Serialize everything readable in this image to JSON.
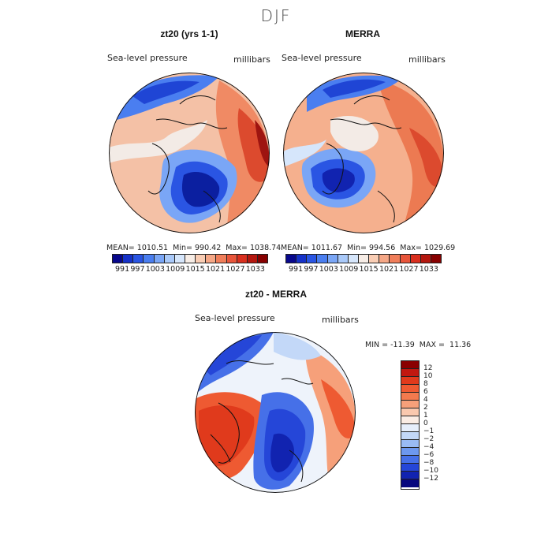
{
  "page": {
    "season": "DJF",
    "panel_left_title": "zt20 (yrs 1-1)",
    "panel_right_title": "MERRA",
    "panel_bottom_title": "zt20 - MERRA"
  },
  "labels": {
    "variable": "Sea-level pressure",
    "units": "millibars"
  },
  "stats": {
    "left": {
      "mean_label": "MEAN=",
      "mean": "1010.51",
      "min_label": "Min=",
      "min": "990.42",
      "max_label": "Max=",
      "max": "1038.74"
    },
    "right": {
      "mean_label": "MEAN=",
      "mean": "1011.67",
      "min_label": "Min=",
      "min": "994.56",
      "max_label": "Max=",
      "max": "1029.69"
    },
    "diff": {
      "min_label": "MIN =",
      "min": "-11.39",
      "max_label": "MAX =",
      "max": "11.36"
    }
  },
  "colorbar_top": {
    "ticks": [
      "991",
      "997",
      "1003",
      "1009",
      "1015",
      "1021",
      "1027",
      "1033"
    ],
    "colors": [
      "#08088c",
      "#1632c8",
      "#2a55e3",
      "#4a7ef0",
      "#7aa6f6",
      "#a9c9f9",
      "#d6e6fb",
      "#f7ede6",
      "#f9cdb4",
      "#f5a786",
      "#f07e5a",
      "#e8553a",
      "#d92f1e",
      "#b4170f",
      "#870000"
    ]
  },
  "colorbar_diff": {
    "ticks": [
      "12",
      "10",
      "8",
      "6",
      "4",
      "2",
      "1",
      "0",
      "−1",
      "−2",
      "−4",
      "−6",
      "−8",
      "−10",
      "−12"
    ],
    "colors": [
      "#8a0000",
      "#c11810",
      "#e03a1c",
      "#ee5a32",
      "#f27a4e",
      "#f6a07a",
      "#f9c8ae",
      "#faece4",
      "#e6eefb",
      "#c3d8f8",
      "#99bbf4",
      "#6d98ef",
      "#4670e8",
      "#2546d8",
      "#1123b0",
      "#08087f"
    ]
  },
  "map_colors": {
    "ocean_warm": "#f4b494",
    "ocean_hot": "#e8553a",
    "ocean_cold": "#2a55e3",
    "ocean_deep": "#0b1fa0",
    "neutral": "#f3ebe6"
  }
}
